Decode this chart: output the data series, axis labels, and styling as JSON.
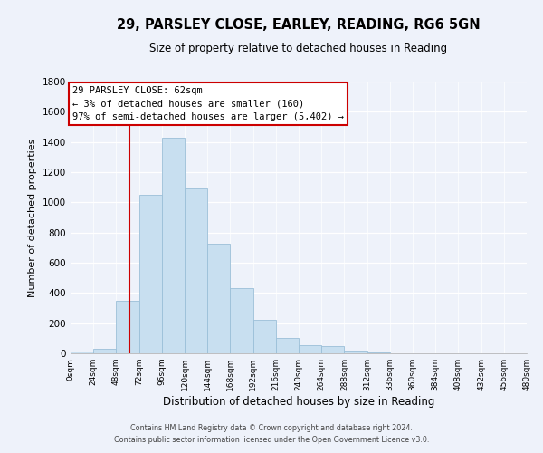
{
  "title": "29, PARSLEY CLOSE, EARLEY, READING, RG6 5GN",
  "subtitle": "Size of property relative to detached houses in Reading",
  "xlabel": "Distribution of detached houses by size in Reading",
  "ylabel": "Number of detached properties",
  "bar_color": "#c8dff0",
  "bar_edge_color": "#9bbfd8",
  "bin_edges": [
    0,
    24,
    48,
    72,
    96,
    120,
    144,
    168,
    192,
    216,
    240,
    264,
    288,
    312,
    336,
    360,
    384,
    408,
    432,
    456,
    480
  ],
  "bar_heights": [
    15,
    30,
    350,
    1050,
    1430,
    1090,
    725,
    430,
    220,
    105,
    55,
    50,
    18,
    8,
    3,
    2,
    1,
    0,
    0,
    0
  ],
  "tick_labels": [
    "0sqm",
    "24sqm",
    "48sqm",
    "72sqm",
    "96sqm",
    "120sqm",
    "144sqm",
    "168sqm",
    "192sqm",
    "216sqm",
    "240sqm",
    "264sqm",
    "288sqm",
    "312sqm",
    "336sqm",
    "360sqm",
    "384sqm",
    "408sqm",
    "432sqm",
    "456sqm",
    "480sqm"
  ],
  "ylim": [
    0,
    1800
  ],
  "yticks": [
    0,
    200,
    400,
    600,
    800,
    1000,
    1200,
    1400,
    1600,
    1800
  ],
  "vline_x": 62,
  "vline_color": "#cc0000",
  "annotation_title": "29 PARSLEY CLOSE: 62sqm",
  "annotation_line1": "← 3% of detached houses are smaller (160)",
  "annotation_line2": "97% of semi-detached houses are larger (5,402) →",
  "annotation_box_facecolor": "#ffffff",
  "annotation_box_edgecolor": "#cc0000",
  "footer_line1": "Contains HM Land Registry data © Crown copyright and database right 2024.",
  "footer_line2": "Contains public sector information licensed under the Open Government Licence v3.0.",
  "background_color": "#eef2fa",
  "plot_bg_color": "#eef2fa",
  "grid_color": "#ffffff",
  "title_fontsize": 10.5,
  "subtitle_fontsize": 8.5
}
